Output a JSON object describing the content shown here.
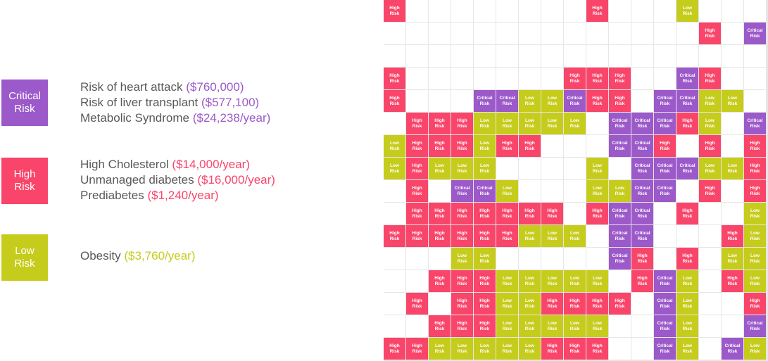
{
  "colors": {
    "critical": "#9b59c9",
    "high": "#f9456a",
    "low": "#c6cc1b",
    "empty": "#ffffff",
    "text": "#595959"
  },
  "categories": [
    {
      "key": "critical",
      "label": "Critical\nRisk",
      "items": [
        {
          "name": "Risk of heart attack",
          "cost": "($760,000)"
        },
        {
          "name": "Risk of liver transplant",
          "cost": "($577,100)"
        },
        {
          "name": "Metabolic Syndrome",
          "cost": "($24,238/year)"
        }
      ]
    },
    {
      "key": "high",
      "label": "High\nRisk",
      "items": [
        {
          "name": "High Cholesterol",
          "cost": "($14,000/year)"
        },
        {
          "name": "Unmanaged diabetes",
          "cost": "($16,000/year)"
        },
        {
          "name": "Prediabetes",
          "cost": "($1,240/year)"
        }
      ]
    },
    {
      "key": "low",
      "label": "Low\nRisk",
      "items": [
        {
          "name": "Obesity",
          "cost": "($3,760/year)"
        }
      ]
    }
  ],
  "cell_labels": {
    "C": "Critical\nRisk",
    "H": "High\nRisk",
    "L": "Low\nRisk"
  },
  "grid": [
    "H........H...L...",
    "..............H.C",
    ".................",
    "H.......HHH..CH..",
    "H...CCLLCHH.CCLL.",
    ".HHHLLLLL.CCCHL.C",
    "LHHHLHH...CCH.H.H",
    "LHLLL....L.CCCLLH",
    ".H.CCL...LLCC.H.H",
    ".HHHHHHH.HCC.H..L",
    "HHHHHHLLL.CC...HL",
    "...LL.....CH.H.LL",
    "..HHHLLLLL.HCL.HL",
    ".H.HHLLHHHH.CL..H",
    "..HHHLLLLL..CL..C",
    "HHLLLLLHHH..CL.CL"
  ]
}
